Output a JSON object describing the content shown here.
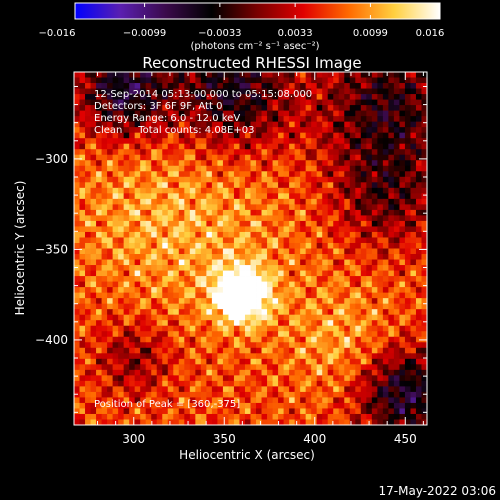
{
  "chart_data": {
    "type": "heatmap",
    "title": "Reconstructed RHESSI Image",
    "xlabel": "Heliocentric X (arcsec)",
    "ylabel": "Heliocentric Y (arcsec)",
    "xlim": [
      267,
      462
    ],
    "ylim": [
      -447,
      -252
    ],
    "xticks": [
      300,
      350,
      400,
      450
    ],
    "yticks": [
      -300,
      -350,
      -400
    ],
    "peak": {
      "x": 360,
      "y": -375
    },
    "colorbar": {
      "range": [
        -0.016,
        0.016
      ],
      "ticks": [
        -0.016,
        -0.0099,
        -0.0033,
        0.0033,
        0.0099,
        0.016
      ],
      "tick_labels": [
        "−0.016",
        "−0.0099",
        "−0.0033",
        "0.0033",
        "0.0099",
        "0.016"
      ],
      "unit_label": "(photons cm⁻² s⁻¹ asec⁻²)",
      "colormap_stops": [
        "#0000ff",
        "#5a1fb0",
        "#3a0a4a",
        "#000000",
        "#7a0000",
        "#e00000",
        "#ff6a00",
        "#ffd040",
        "#ffffff"
      ]
    },
    "annotations": [
      "12-Sep-2014 05:13:00.000 to 05:15:08.000",
      "Detectors: 3F 6F 9F, Att 0",
      "Energy Range: 6.0 - 12.0 keV",
      "Clean     Total counts: 4.08E+03"
    ],
    "peak_label": "Position of Peak = [360,-375]"
  },
  "timestamp": "17-May-2022 03:06"
}
